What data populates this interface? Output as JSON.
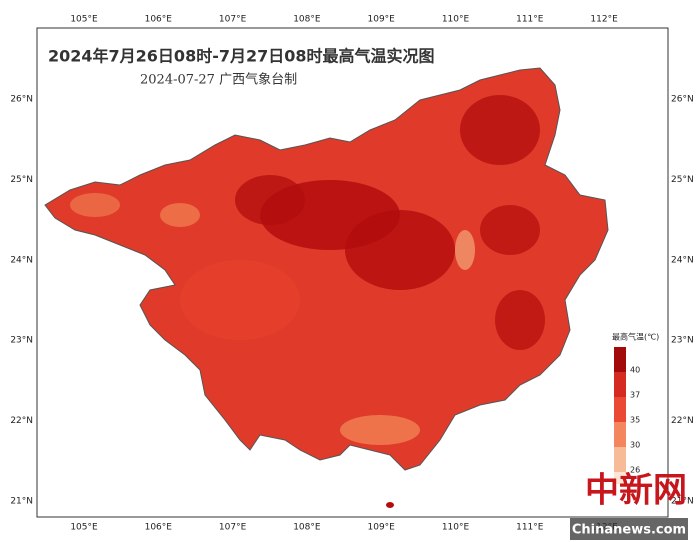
{
  "header": {
    "title": "2024年7月26日08时-7月27日08时最高气温实况图",
    "subtitle": "2024-07-27  广西气象台制"
  },
  "axes": {
    "longitude_labels": [
      "105°E",
      "106°E",
      "107°E",
      "108°E",
      "109°E",
      "110°E",
      "111°E",
      "112°E"
    ],
    "latitude_labels": [
      "26°N",
      "25°N",
      "24°N",
      "23°N",
      "22°N",
      "21°N"
    ]
  },
  "legend": {
    "title": "最高气温(℃)",
    "items": [
      {
        "label": "40",
        "color": "#a30a0a"
      },
      {
        "label": "37",
        "color": "#d42a20"
      },
      {
        "label": "35",
        "color": "#ea4a33"
      },
      {
        "label": "30",
        "color": "#f3865c"
      },
      {
        "label": "26",
        "color": "#f8bb98"
      }
    ],
    "lowest_color": "#fde6d6"
  },
  "watermark": {
    "logo": "中新网",
    "site": "Chinanews.com"
  }
}
